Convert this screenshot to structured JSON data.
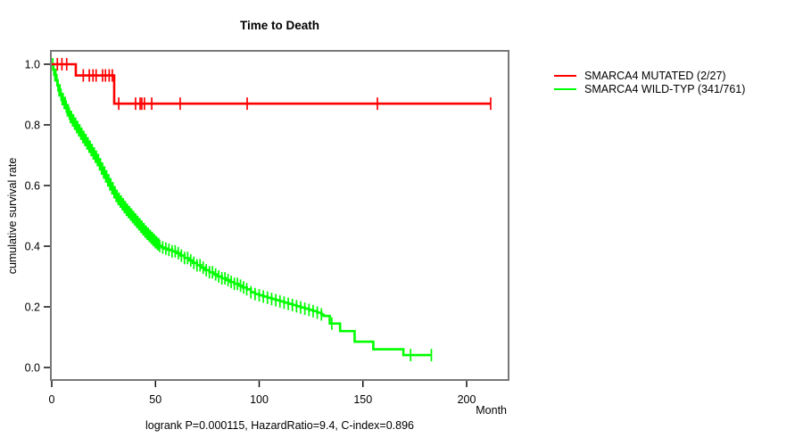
{
  "title": "Time to Death",
  "caption": "logrank P=0.000115, HazardRatio=9.4, C-index=0.896",
  "axes": {
    "x": {
      "label": "Month",
      "ticks": [
        "0",
        "50",
        "100",
        "150",
        "200"
      ],
      "tick_values": [
        0,
        50,
        100,
        150,
        200
      ]
    },
    "y": {
      "label": "cumulative survival rate",
      "ticks": [
        "0.0",
        "0.2",
        "0.4",
        "0.6",
        "0.8",
        "1.0"
      ],
      "tick_values": [
        0,
        0.2,
        0.4,
        0.6,
        0.8,
        1.0
      ]
    }
  },
  "legend": [
    {
      "label": "SMARCA4 MUTATED (2/27)",
      "color": "#ff0000"
    },
    {
      "label": "SMARCA4 WILD-TYP (341/761)",
      "color": "#00ff00"
    }
  ],
  "colors": {
    "frame": "#787878",
    "axis": "#000000",
    "text": "#000000",
    "background": "#ffffff",
    "red_series": "#ff0000",
    "green_series": "#00ff00"
  },
  "chart_data": {
    "type": "line",
    "subtype": "kaplan-meier-survival-step",
    "title": "Time to Death",
    "xlabel": "Month",
    "ylabel": "cumulative survival rate",
    "xlim": [
      0,
      220
    ],
    "ylim": [
      0,
      1.04
    ],
    "grid": false,
    "legend_position": "outside-top-right",
    "stats_caption": "logrank P=0.000115, HazardRatio=9.4, C-index=0.896",
    "series": [
      {
        "id": "smarca4-mutated",
        "name": "SMARCA4 MUTATED (2/27)",
        "color": "#ff0000",
        "events": "2/27",
        "steps": [
          [
            0,
            1.0
          ],
          [
            11.6,
            0.963
          ],
          [
            30.1,
            0.87
          ]
        ],
        "end_month": 211.6,
        "censor_months": [
          2.7,
          4.9,
          7.2,
          15.2,
          18.1,
          19.9,
          21.4,
          24.5,
          25.9,
          27.7,
          29.2,
          32.3,
          40.4,
          42.6,
          43.4,
          44.7,
          48.2,
          61.9,
          94.2,
          157,
          211.6
        ]
      },
      {
        "id": "smarca4-wildtype",
        "name": "SMARCA4 WILD-TYP (341/761)",
        "color": "#00ff00",
        "events": "341/761",
        "steps": [
          [
            0,
            1.0
          ],
          [
            0.7,
            0.982
          ],
          [
            1.4,
            0.964
          ],
          [
            2.1,
            0.947
          ],
          [
            2.8,
            0.93
          ],
          [
            3.5,
            0.914
          ],
          [
            4.2,
            0.899
          ],
          [
            5,
            0.885
          ],
          [
            5.8,
            0.872
          ],
          [
            6.6,
            0.86
          ],
          [
            7.4,
            0.848
          ],
          [
            8.2,
            0.837
          ],
          [
            9,
            0.826
          ],
          [
            10,
            0.815
          ],
          [
            11,
            0.804
          ],
          [
            12,
            0.793
          ],
          [
            13,
            0.782
          ],
          [
            14,
            0.771
          ],
          [
            15,
            0.76
          ],
          [
            16,
            0.75
          ],
          [
            17,
            0.739
          ],
          [
            18,
            0.728
          ],
          [
            19,
            0.717
          ],
          [
            20,
            0.706
          ],
          [
            21,
            0.695
          ],
          [
            22,
            0.684
          ],
          [
            23,
            0.67
          ],
          [
            24,
            0.656
          ],
          [
            25,
            0.643
          ],
          [
            26,
            0.63
          ],
          [
            27,
            0.617
          ],
          [
            28,
            0.604
          ],
          [
            29,
            0.591
          ],
          [
            30,
            0.578
          ],
          [
            31,
            0.566
          ],
          [
            32,
            0.556
          ],
          [
            33,
            0.547
          ],
          [
            34,
            0.538
          ],
          [
            35,
            0.529
          ],
          [
            36,
            0.52
          ],
          [
            37,
            0.512
          ],
          [
            38,
            0.504
          ],
          [
            39,
            0.496
          ],
          [
            40,
            0.488
          ],
          [
            41,
            0.48
          ],
          [
            42,
            0.472
          ],
          [
            43,
            0.464
          ],
          [
            44,
            0.456
          ],
          [
            45,
            0.448
          ],
          [
            46,
            0.441
          ],
          [
            47,
            0.434
          ],
          [
            48,
            0.427
          ],
          [
            49,
            0.42
          ],
          [
            50,
            0.413
          ],
          [
            51,
            0.407
          ],
          [
            52,
            0.401
          ],
          [
            53,
            0.396
          ],
          [
            54,
            0.392
          ],
          [
            56,
            0.388
          ],
          [
            58,
            0.383
          ],
          [
            60,
            0.377
          ],
          [
            62,
            0.369
          ],
          [
            64,
            0.361
          ],
          [
            66,
            0.353
          ],
          [
            68,
            0.345
          ],
          [
            70,
            0.337
          ],
          [
            72,
            0.329
          ],
          [
            74,
            0.321
          ],
          [
            76,
            0.314
          ],
          [
            78,
            0.307
          ],
          [
            80,
            0.3
          ],
          [
            82,
            0.294
          ],
          [
            84,
            0.288
          ],
          [
            86,
            0.282
          ],
          [
            88,
            0.276
          ],
          [
            90,
            0.27
          ],
          [
            92,
            0.264
          ],
          [
            94,
            0.258
          ],
          [
            96,
            0.248
          ],
          [
            98,
            0.242
          ],
          [
            100,
            0.238
          ],
          [
            102,
            0.234
          ],
          [
            104,
            0.23
          ],
          [
            106,
            0.226
          ],
          [
            108,
            0.222
          ],
          [
            110,
            0.218
          ],
          [
            112,
            0.214
          ],
          [
            114,
            0.21
          ],
          [
            116,
            0.206
          ],
          [
            118,
            0.202
          ],
          [
            120,
            0.198
          ],
          [
            122,
            0.194
          ],
          [
            124,
            0.19
          ],
          [
            126,
            0.186
          ],
          [
            128,
            0.181
          ],
          [
            130,
            0.175
          ],
          [
            131,
            0.17
          ],
          [
            134,
            0.145
          ],
          [
            139,
            0.12
          ],
          [
            146,
            0.085
          ],
          [
            155,
            0.06
          ],
          [
            169.5,
            0.041
          ]
        ],
        "end_month": 183,
        "censor_months": [
          0.5,
          1,
          1.5,
          2,
          2.5,
          3,
          3.5,
          4,
          4.5,
          5,
          5.5,
          6,
          6.5,
          7,
          7.5,
          8,
          8.5,
          9,
          9.5,
          10,
          10.5,
          11,
          11.5,
          12,
          12.5,
          13,
          13.5,
          14,
          14.5,
          15,
          15.5,
          16,
          16.5,
          17,
          17.5,
          18,
          18.5,
          19,
          19.5,
          20,
          20.5,
          21,
          21.5,
          22,
          22.5,
          23,
          23.5,
          24,
          24.5,
          25,
          25.5,
          26,
          26.5,
          27,
          27.5,
          28,
          28.5,
          29,
          29.5,
          30,
          30.5,
          31,
          31.5,
          32,
          32.5,
          33,
          33.5,
          34,
          34.5,
          35,
          35.5,
          36,
          36.5,
          37,
          37.5,
          38,
          38.5,
          39,
          39.5,
          40,
          40.5,
          41,
          41.5,
          42,
          42.5,
          43,
          43.5,
          44,
          44.5,
          45,
          45.5,
          46,
          46.5,
          47,
          47.5,
          48,
          48.5,
          49,
          49.5,
          50,
          50.5,
          51,
          51.5,
          52,
          53.5,
          55,
          56.5,
          58,
          59.5,
          61,
          62.5,
          64,
          65.5,
          67,
          68.5,
          70,
          71.5,
          73,
          74.5,
          76,
          77.5,
          79,
          80.5,
          82,
          83.5,
          85,
          86.5,
          88,
          89.5,
          91,
          92.5,
          94,
          96,
          98,
          100,
          102,
          104,
          106,
          108,
          110,
          112,
          114,
          116,
          118,
          120,
          122,
          124,
          126,
          128,
          130,
          135,
          173,
          183
        ]
      }
    ]
  }
}
